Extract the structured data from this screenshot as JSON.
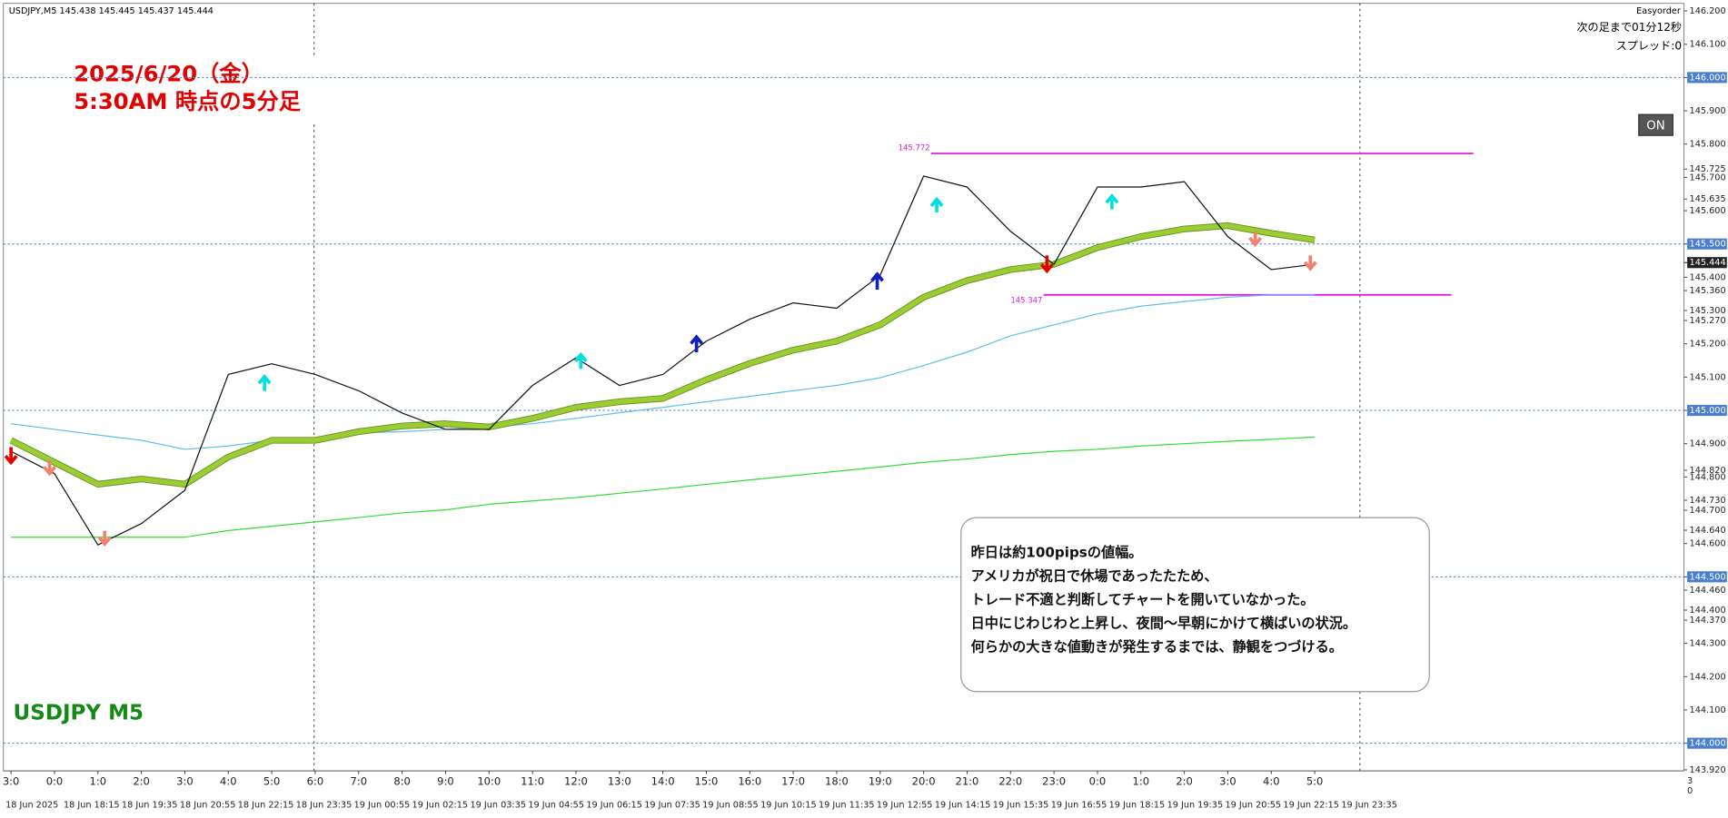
{
  "chart_data": {
    "type": "line",
    "header": "USDJPY,M5  145.438 145.445 145.437 145.444",
    "title": "2025/6/20（金）",
    "subtitle": "5:30AM 時点の5分足",
    "symbol_label": "USDJPY M5",
    "annotation": [
      "昨日は約100pipsの値幅。",
      "アメリカが祝日で休場であったたため、",
      "トレード不適と判断してチャートを開いていなかった。",
      "日中にじわじわと上昇し、夜間〜早朝にかけて横ばいの状況。",
      "何らかの大きな値動きが発生するまでは、静観をつづける。"
    ],
    "categories": [
      "3:0",
      "0:0",
      "1:0",
      "2:0",
      "3:0",
      "4:0",
      "5:0",
      "6:0",
      "7:0",
      "8:0",
      "9:0",
      "10:0",
      "11:0",
      "12:0",
      "13:0",
      "14:0",
      "15:0",
      "16:0",
      "17:0",
      "18:0",
      "19:0",
      "20:0",
      "21:0",
      "22:0",
      "23:0",
      "0:0",
      "1:0",
      "2:0",
      "3:0",
      "4:0",
      "5:0"
    ],
    "x_date_labels": [
      "18 Jun 2025",
      "18 Jun 18:15",
      "18 Jun 19:35",
      "18 Jun 20:55",
      "18 Jun 22:15",
      "18 Jun 23:35",
      "19 Jun 00:55",
      "19 Jun 02:15",
      "19 Jun 03:35",
      "19 Jun 04:55",
      "19 Jun 06:15",
      "19 Jun 07:35",
      "19 Jun 08:55",
      "19 Jun 10:15",
      "19 Jun 11:35",
      "19 Jun 12:55",
      "19 Jun 14:15",
      "19 Jun 15:35",
      "19 Jun 16:55",
      "19 Jun 18:15",
      "19 Jun 19:35",
      "19 Jun 20:55",
      "19 Jun 22:15",
      "19 Jun 23:35"
    ],
    "series": [
      {
        "color": "#5bc0eb",
        "values": [
          144.96,
          144.943,
          144.926,
          144.91,
          144.883,
          144.893,
          144.91,
          144.917,
          144.933,
          144.936,
          144.943,
          144.95,
          144.96,
          144.976,
          144.993,
          145.009,
          145.026,
          145.042,
          145.059,
          145.075,
          145.098,
          145.135,
          145.175,
          145.224,
          145.257,
          145.29,
          145.313,
          145.327,
          145.34,
          145.347,
          145.347
        ]
      },
      {
        "color": "#33dd33",
        "values": [
          144.619,
          144.619,
          144.619,
          144.619,
          144.619,
          144.639,
          144.652,
          144.665,
          144.678,
          144.692,
          144.701,
          144.718,
          144.728,
          144.738,
          144.751,
          144.764,
          144.778,
          144.791,
          144.804,
          144.817,
          144.83,
          144.844,
          144.854,
          144.867,
          144.877,
          144.883,
          144.893,
          144.9,
          144.907,
          144.913,
          144.92
        ]
      },
      {
        "color": "#9acd32",
        "values": [
          144.91,
          144.844,
          144.778,
          144.794,
          144.778,
          144.86,
          144.91,
          144.91,
          144.936,
          144.953,
          144.96,
          144.95,
          144.976,
          145.009,
          145.026,
          145.036,
          145.092,
          145.141,
          145.181,
          145.208,
          145.257,
          145.34,
          145.39,
          145.423,
          145.439,
          145.489,
          145.522,
          145.545,
          145.555,
          145.532,
          145.512
        ]
      },
      {
        "color": "#111111",
        "values": [
          144.877,
          144.81,
          144.596,
          144.66,
          144.76,
          145.108,
          145.14,
          145.108,
          145.059,
          144.992,
          144.943,
          144.943,
          145.075,
          145.158,
          145.075,
          145.108,
          145.208,
          145.274,
          145.323,
          145.307,
          145.406,
          145.704,
          145.671,
          145.538,
          145.439,
          145.671,
          145.671,
          145.687,
          145.522,
          145.423,
          145.439
        ]
      }
    ],
    "ylim": [
      143.917,
      146.223
    ],
    "yticks": [
      {
        "value": 146.2,
        "label": "146.200"
      },
      {
        "value": 146.1,
        "label": "146.100"
      },
      {
        "value": 146.0,
        "label": "146.000"
      },
      {
        "value": 145.9,
        "label": "145.900"
      },
      {
        "value": 145.8,
        "label": "145.800"
      },
      {
        "value": 145.725,
        "label": "145.725"
      },
      {
        "value": 145.7,
        "label": "145.700"
      },
      {
        "value": 145.635,
        "label": "145.635"
      },
      {
        "value": 145.6,
        "label": "145.600"
      },
      {
        "value": 145.5,
        "label": "145.500"
      },
      {
        "value": 145.4,
        "label": "145.400"
      },
      {
        "value": 145.36,
        "label": "145.360"
      },
      {
        "value": 145.3,
        "label": "145.300"
      },
      {
        "value": 145.27,
        "label": "145.270"
      },
      {
        "value": 145.2,
        "label": "145.200"
      },
      {
        "value": 145.1,
        "label": "145.100"
      },
      {
        "value": 145.0,
        "label": "145.000"
      },
      {
        "value": 144.9,
        "label": "144.900"
      },
      {
        "value": 144.82,
        "label": "144.820"
      },
      {
        "value": 144.8,
        "label": "144.800"
      },
      {
        "value": 144.73,
        "label": "144.730"
      },
      {
        "value": 144.7,
        "label": "144.700"
      },
      {
        "value": 144.64,
        "label": "144.640"
      },
      {
        "value": 144.6,
        "label": "144.600"
      },
      {
        "value": 144.5,
        "label": "144.500"
      },
      {
        "value": 144.46,
        "label": "144.460"
      },
      {
        "value": 144.4,
        "label": "144.400"
      },
      {
        "value": 144.37,
        "label": "144.370"
      },
      {
        "value": 144.3,
        "label": "144.300"
      },
      {
        "value": 144.2,
        "label": "144.200"
      },
      {
        "value": 144.1,
        "label": "144.100"
      },
      {
        "value": 144.0,
        "label": "144.000"
      },
      {
        "value": 143.92,
        "label": "143.920"
      }
    ],
    "hlines": [
      146.0,
      145.5,
      145.0,
      144.5,
      144.0
    ],
    "hline_color": "#4a7fd0",
    "current_price": 145.444,
    "levels": [
      145.772,
      145.347
    ],
    "level_color": "#e01ee0",
    "corner_labels": [
      "3",
      "0"
    ]
  },
  "ui": {
    "order_panel": "Easyorder",
    "countdown": "次の足まで01分12秒",
    "spread": "スプレッド:0",
    "button": "ON"
  }
}
